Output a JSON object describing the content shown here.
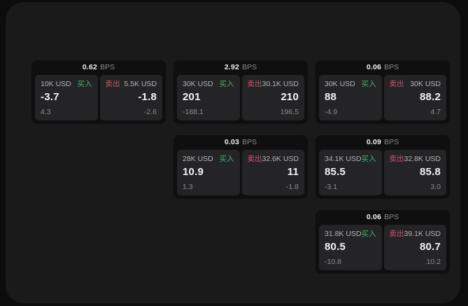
{
  "colors": {
    "page_bg": "#0c0c0d",
    "panel_bg": "#1a1a1b",
    "card_bg": "#0f0f10",
    "tile_bg": "#242426",
    "buy": "#41b36a",
    "sell": "#cf5368"
  },
  "labels": {
    "bps": "BPS",
    "buy": "买入",
    "sell": "卖出"
  },
  "cards": [
    {
      "col": 1,
      "row": 1,
      "bps": "0.62",
      "buy": {
        "notional": "10K USD",
        "value": "-3.7",
        "sub": "4.3"
      },
      "sell": {
        "notional": "5.5K USD",
        "value": "-1.8",
        "sub": "-2.6"
      }
    },
    {
      "col": 2,
      "row": 1,
      "bps": "2.92",
      "buy": {
        "notional": "30K USD",
        "value": "201",
        "sub": "-188.1"
      },
      "sell": {
        "notional": "30.1K USD",
        "value": "210",
        "sub": "196.5"
      }
    },
    {
      "col": 3,
      "row": 1,
      "bps": "0.06",
      "buy": {
        "notional": "30K USD",
        "value": "88",
        "sub": "-4.9"
      },
      "sell": {
        "notional": "30K USD",
        "value": "88.2",
        "sub": "4.7"
      }
    },
    {
      "col": 2,
      "row": 2,
      "bps": "0.03",
      "buy": {
        "notional": "28K USD",
        "value": "10.9",
        "sub": "1.3"
      },
      "sell": {
        "notional": "32.6K USD",
        "value": "11",
        "sub": "-1.8"
      }
    },
    {
      "col": 3,
      "row": 2,
      "bps": "0.09",
      "buy": {
        "notional": "34.1K USD",
        "value": "85.5",
        "sub": "-3.1"
      },
      "sell": {
        "notional": "32.8K USD",
        "value": "85.8",
        "sub": "3.0"
      }
    },
    {
      "col": 3,
      "row": 3,
      "bps": "0.06",
      "buy": {
        "notional": "31.8K USD",
        "value": "80.5",
        "sub": "-10.8"
      },
      "sell": {
        "notional": "39.1K USD",
        "value": "80.7",
        "sub": "10.2"
      }
    }
  ]
}
